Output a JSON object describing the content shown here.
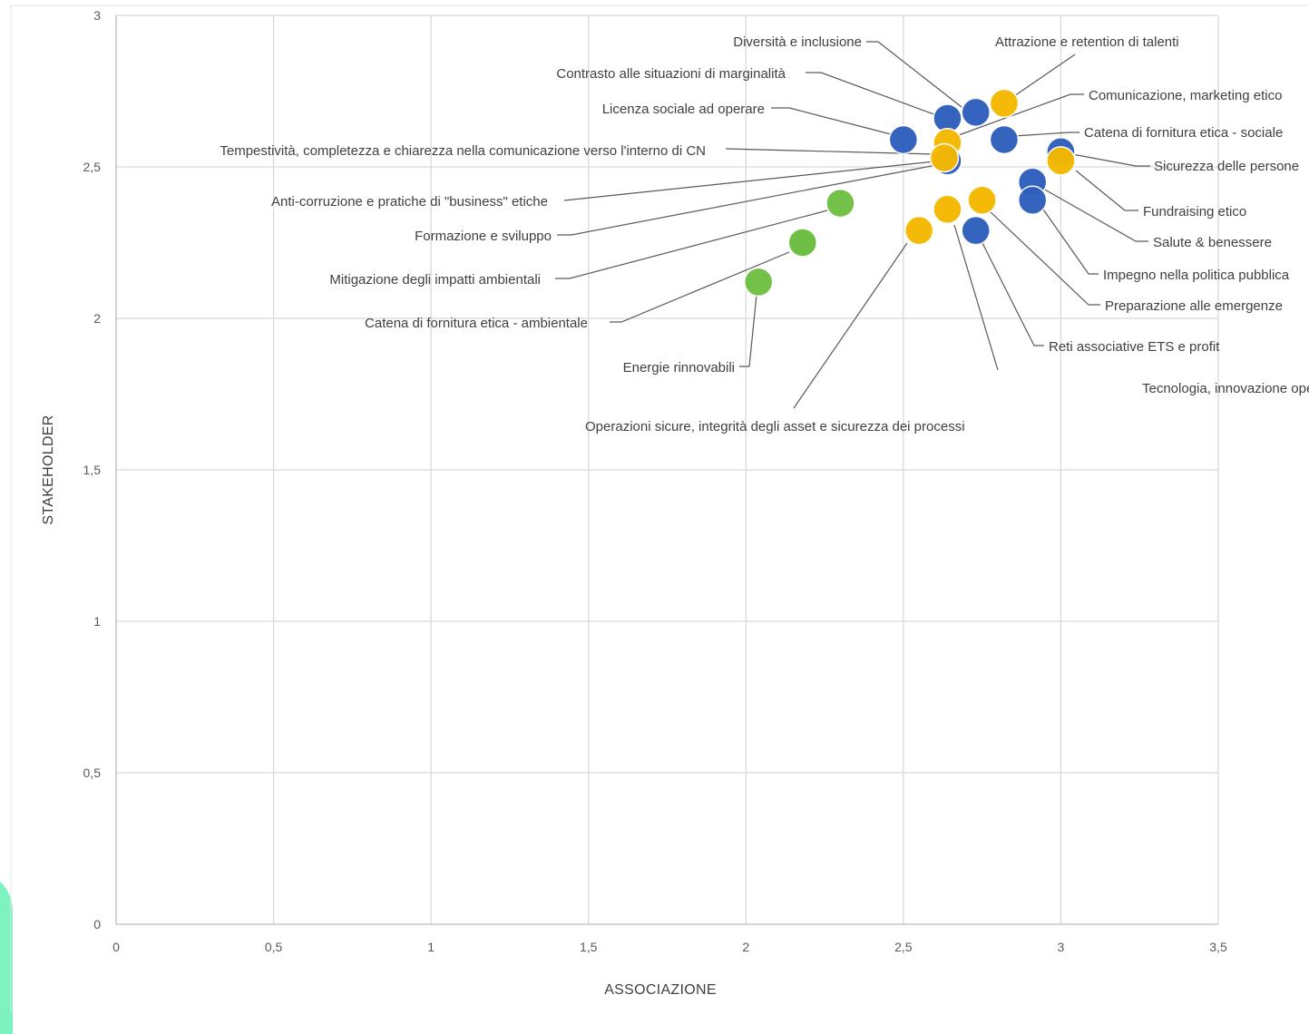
{
  "chart_data": {
    "type": "scatter",
    "xlabel": "ASSOCIAZIONE",
    "ylabel": "STAKEHOLDER",
    "xlim": [
      0,
      3.5
    ],
    "ylim": [
      0,
      3
    ],
    "x_ticks": [
      "0",
      "0,5",
      "1",
      "1,5",
      "2",
      "2,5",
      "3",
      "3,5"
    ],
    "y_ticks": [
      "0",
      "0,5",
      "1",
      "1,5",
      "2",
      "2,5",
      "3"
    ],
    "grid": true,
    "colors": {
      "blue": "#2f5fbd",
      "yellow": "#f5b800",
      "green": "#6fbf44"
    },
    "points": [
      {
        "label": "Diversità e inclusione",
        "x": 2.73,
        "y": 2.68,
        "color": "blue"
      },
      {
        "label": "Attrazione e retention di talenti",
        "x": 2.82,
        "y": 2.71,
        "color": "yellow"
      },
      {
        "label": "Contrasto alle situazioni di marginalità",
        "x": 2.64,
        "y": 2.66,
        "color": "blue"
      },
      {
        "label": "Comunicazione, marketing etico",
        "x": 2.64,
        "y": 2.58,
        "color": "yellow"
      },
      {
        "label": "Licenza sociale ad operare",
        "x": 2.5,
        "y": 2.59,
        "color": "blue"
      },
      {
        "label": "Catena di fornitura etica - sociale",
        "x": 2.82,
        "y": 2.59,
        "color": "blue"
      },
      {
        "label": "Tempestività, completezza e chiarezza nella comunicazione verso l'interno di CN",
        "x": 2.64,
        "y": 2.52,
        "color": "blue"
      },
      {
        "label": "Sicurezza delle persone",
        "x": 3.0,
        "y": 2.55,
        "color": "blue"
      },
      {
        "label": "Fundraising etico",
        "x": 3.0,
        "y": 2.52,
        "color": "yellow"
      },
      {
        "label": "Anti-corruzione e pratiche di \"business\" etiche",
        "x": 2.63,
        "y": 2.53,
        "color": "yellow"
      },
      {
        "label": "Salute & benessere",
        "x": 2.91,
        "y": 2.45,
        "color": "blue"
      },
      {
        "label": "Impegno nella politica pubblica",
        "x": 2.91,
        "y": 2.39,
        "color": "blue"
      },
      {
        "label": "Formazione e sviluppo",
        "x": 2.3,
        "y": 2.38,
        "color": "green"
      },
      {
        "label": "Preparazione alle emergenze",
        "x": 2.75,
        "y": 2.39,
        "color": "yellow"
      },
      {
        "label": "Tecnologia, innovazione operativa e ricerca",
        "x": 2.64,
        "y": 2.36,
        "color": "yellow"
      },
      {
        "label": "Operazioni sicure, integrità degli asset e sicurezza dei processi",
        "x": 2.55,
        "y": 2.29,
        "color": "yellow"
      },
      {
        "label": "Reti associative ETS e profit",
        "x": 2.73,
        "y": 2.29,
        "color": "blue"
      },
      {
        "label": "Mitigazione degli impatti ambientali",
        "x": 2.18,
        "y": 2.25,
        "color": "green"
      },
      {
        "label": "Catena di fornitura etica - ambientale",
        "x": 2.18,
        "y": 2.25,
        "color": "green"
      },
      {
        "label": "Energie rinnovabili",
        "x": 2.04,
        "y": 2.12,
        "color": "green"
      }
    ]
  }
}
